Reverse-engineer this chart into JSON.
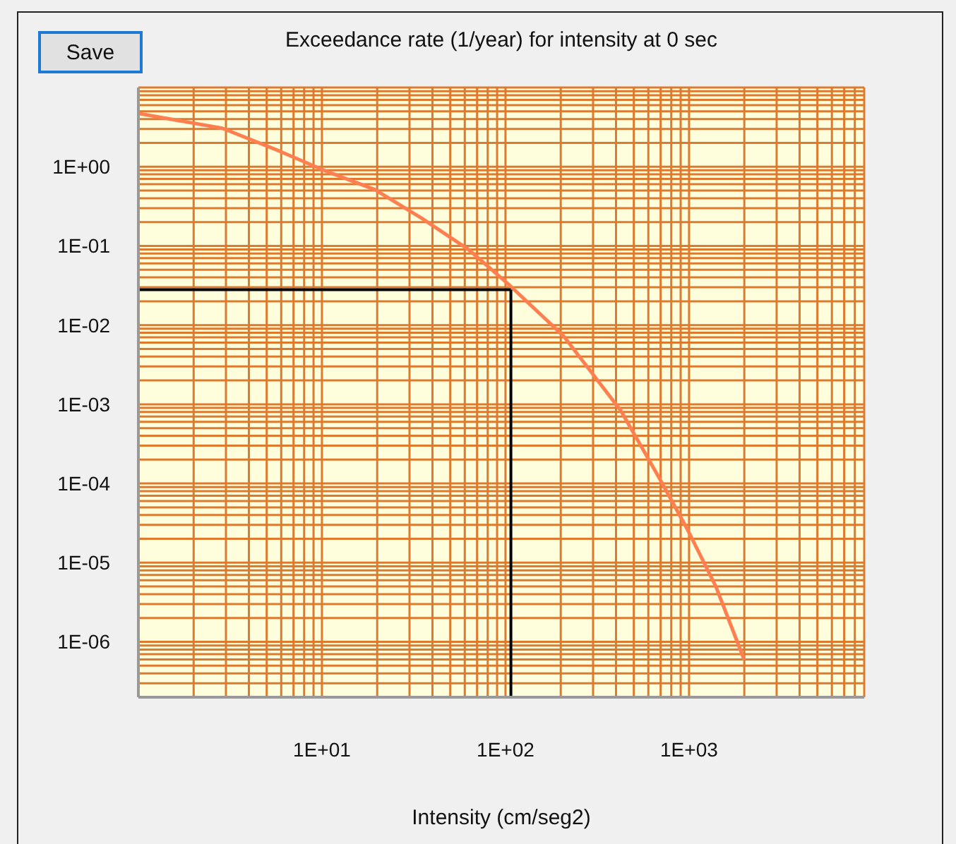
{
  "chart_data": {
    "type": "line",
    "title": "Exceedance rate (1/year) for intensity at 0 sec",
    "xlabel": "Intensity (cm/seg2)",
    "annotations": [
      "Save"
    ],
    "log": "xy",
    "grid": true,
    "marker": "none",
    "line_style": "solid",
    "xlim": [
      1,
      9000
    ],
    "ylim": [
      2e-07,
      10
    ],
    "xticks": [
      {
        "value": 1,
        "label": null
      },
      {
        "value": 2,
        "label": null
      },
      {
        "value": 3,
        "label": null
      },
      {
        "value": 4,
        "label": null
      },
      {
        "value": 5,
        "label": null
      },
      {
        "value": 6,
        "label": null
      },
      {
        "value": 7,
        "label": null
      },
      {
        "value": 8,
        "label": null
      },
      {
        "value": 9,
        "label": null
      },
      {
        "value": 10,
        "label": "1E+01"
      },
      {
        "value": 20,
        "label": null
      },
      {
        "value": 30,
        "label": null
      },
      {
        "value": 40,
        "label": null
      },
      {
        "value": 50,
        "label": null
      },
      {
        "value": 60,
        "label": null
      },
      {
        "value": 70,
        "label": null
      },
      {
        "value": 80,
        "label": null
      },
      {
        "value": 90,
        "label": null
      },
      {
        "value": 100,
        "label": "1E+02"
      },
      {
        "value": 200,
        "label": null
      },
      {
        "value": 300,
        "label": null
      },
      {
        "value": 400,
        "label": null
      },
      {
        "value": 500,
        "label": null
      },
      {
        "value": 600,
        "label": null
      },
      {
        "value": 700,
        "label": null
      },
      {
        "value": 800,
        "label": null
      },
      {
        "value": 900,
        "label": null
      },
      {
        "value": 1000,
        "label": "1E+03"
      },
      {
        "value": 2000,
        "label": null
      },
      {
        "value": 3000,
        "label": null
      },
      {
        "value": 4000,
        "label": null
      },
      {
        "value": 5000,
        "label": null
      },
      {
        "value": 6000,
        "label": null
      },
      {
        "value": 7000,
        "label": null
      },
      {
        "value": 8000,
        "label": null
      },
      {
        "value": 9000,
        "label": null
      }
    ],
    "yticks": [
      {
        "value": 2e-07,
        "label": null
      },
      {
        "value": 3e-07,
        "label": null
      },
      {
        "value": 4e-07,
        "label": null
      },
      {
        "value": 5e-07,
        "label": null
      },
      {
        "value": 6e-07,
        "label": null
      },
      {
        "value": 7e-07,
        "label": null
      },
      {
        "value": 8e-07,
        "label": null
      },
      {
        "value": 9e-07,
        "label": null
      },
      {
        "value": 1e-06,
        "label": "1E-06"
      },
      {
        "value": 2e-06,
        "label": null
      },
      {
        "value": 3e-06,
        "label": null
      },
      {
        "value": 4e-06,
        "label": null
      },
      {
        "value": 5e-06,
        "label": null
      },
      {
        "value": 6e-06,
        "label": null
      },
      {
        "value": 7e-06,
        "label": null
      },
      {
        "value": 8e-06,
        "label": null
      },
      {
        "value": 9e-06,
        "label": null
      },
      {
        "value": 1e-05,
        "label": "1E-05"
      },
      {
        "value": 2e-05,
        "label": null
      },
      {
        "value": 3e-05,
        "label": null
      },
      {
        "value": 4e-05,
        "label": null
      },
      {
        "value": 5e-05,
        "label": null
      },
      {
        "value": 6e-05,
        "label": null
      },
      {
        "value": 7e-05,
        "label": null
      },
      {
        "value": 8e-05,
        "label": null
      },
      {
        "value": 9e-05,
        "label": null
      },
      {
        "value": 0.0001,
        "label": "1E-04"
      },
      {
        "value": 0.0002,
        "label": null
      },
      {
        "value": 0.0003,
        "label": null
      },
      {
        "value": 0.0004,
        "label": null
      },
      {
        "value": 0.0005,
        "label": null
      },
      {
        "value": 0.0006,
        "label": null
      },
      {
        "value": 0.0007,
        "label": null
      },
      {
        "value": 0.0008,
        "label": null
      },
      {
        "value": 0.0009,
        "label": null
      },
      {
        "value": 0.001,
        "label": "1E-03"
      },
      {
        "value": 0.002,
        "label": null
      },
      {
        "value": 0.003,
        "label": null
      },
      {
        "value": 0.004,
        "label": null
      },
      {
        "value": 0.005,
        "label": null
      },
      {
        "value": 0.006,
        "label": null
      },
      {
        "value": 0.007,
        "label": null
      },
      {
        "value": 0.008,
        "label": null
      },
      {
        "value": 0.009,
        "label": null
      },
      {
        "value": 0.01,
        "label": "1E-02"
      },
      {
        "value": 0.02,
        "label": null
      },
      {
        "value": 0.03,
        "label": null
      },
      {
        "value": 0.04,
        "label": null
      },
      {
        "value": 0.05,
        "label": null
      },
      {
        "value": 0.06,
        "label": null
      },
      {
        "value": 0.07,
        "label": null
      },
      {
        "value": 0.08,
        "label": null
      },
      {
        "value": 0.09,
        "label": null
      },
      {
        "value": 0.1,
        "label": "1E-01"
      },
      {
        "value": 0.2,
        "label": null
      },
      {
        "value": 0.3,
        "label": null
      },
      {
        "value": 0.4,
        "label": null
      },
      {
        "value": 0.5,
        "label": null
      },
      {
        "value": 0.6,
        "label": null
      },
      {
        "value": 0.7,
        "label": null
      },
      {
        "value": 0.8,
        "label": null
      },
      {
        "value": 0.9,
        "label": null
      },
      {
        "value": 1,
        "label": "1E+00"
      },
      {
        "value": 2,
        "label": null
      },
      {
        "value": 3,
        "label": null
      },
      {
        "value": 4,
        "label": null
      },
      {
        "value": 5,
        "label": null
      },
      {
        "value": 6,
        "label": null
      },
      {
        "value": 7,
        "label": null
      },
      {
        "value": 8,
        "label": null
      },
      {
        "value": 9,
        "label": null
      },
      {
        "value": 10,
        "label": null
      }
    ],
    "ref_lines": [
      {
        "axis": "x",
        "value": 107,
        "color": "#000000"
      },
      {
        "axis": "y",
        "value": 0.028,
        "color": "#000000"
      }
    ],
    "series": [
      {
        "color": "#ff7f50",
        "x": [
          1,
          2.87,
          5.85,
          10.5,
          19.4,
          34.9,
          62.9,
          105,
          208,
          425,
          687,
          982,
          1400,
          2000
        ],
        "values": [
          4.7,
          3.06,
          1.58,
          0.88,
          0.515,
          0.224,
          0.09,
          0.032,
          0.0072,
          0.00083,
          0.000118,
          2.6e-05,
          5e-06,
          5.9e-07
        ]
      }
    ]
  }
}
